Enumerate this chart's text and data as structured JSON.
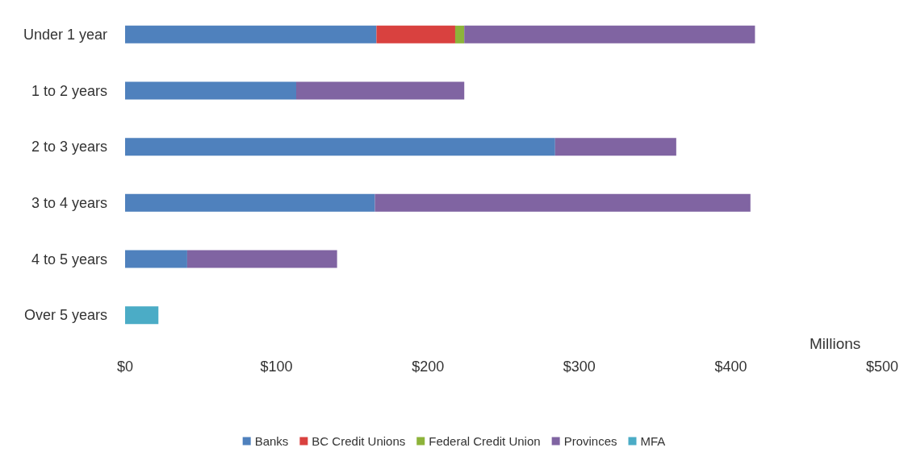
{
  "chart_data": {
    "type": "bar",
    "orientation": "horizontal",
    "stacked": true,
    "categories": [
      "Under 1 year",
      "1 to 2 years",
      "2 to 3 years",
      "3 to 4 years",
      "4 to 5 years",
      "Over 5 years"
    ],
    "series": [
      {
        "name": "Banks",
        "color": "#4f81bd",
        "values": [
          166,
          113,
          284,
          165,
          41,
          null
        ]
      },
      {
        "name": "BC Credit Unions",
        "color": "#d9413f",
        "values": [
          52,
          null,
          null,
          null,
          null,
          null
        ]
      },
      {
        "name": "Federal Credit Union",
        "color": "#8db33a",
        "values": [
          6,
          null,
          null,
          null,
          null,
          null
        ]
      },
      {
        "name": "Provinces",
        "color": "#8064a2",
        "values": [
          192,
          111,
          80,
          248,
          99,
          null
        ]
      },
      {
        "name": "MFA",
        "color": "#4bacc6",
        "values": [
          null,
          null,
          null,
          null,
          null,
          22
        ]
      }
    ],
    "xlabel": "Millions",
    "xlim": [
      0,
      500
    ],
    "xticks": [
      {
        "value": 0,
        "label": "$0"
      },
      {
        "value": 100,
        "label": "$100"
      },
      {
        "value": 200,
        "label": "$200"
      },
      {
        "value": 300,
        "label": "$300"
      },
      {
        "value": 400,
        "label": "$400"
      },
      {
        "value": 500,
        "label": "$500"
      }
    ],
    "grid": false,
    "legend": "bottom"
  }
}
